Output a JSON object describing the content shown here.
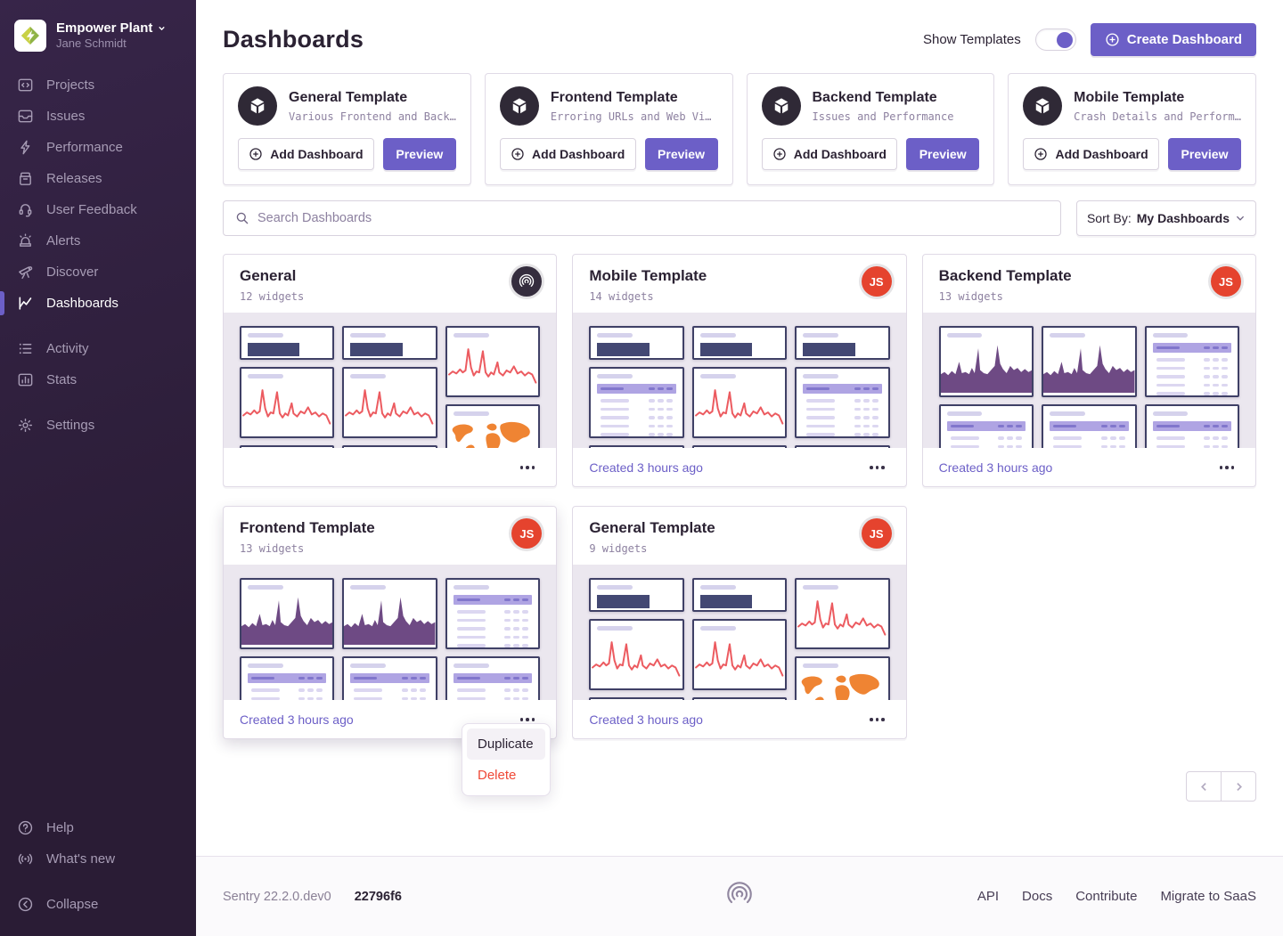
{
  "sidebar": {
    "org_name": "Empower Plant",
    "user_name": "Jane Schmidt",
    "items": [
      {
        "id": "projects",
        "label": "Projects",
        "icon": "projects"
      },
      {
        "id": "issues",
        "label": "Issues",
        "icon": "issues"
      },
      {
        "id": "performance",
        "label": "Performance",
        "icon": "performance"
      },
      {
        "id": "releases",
        "label": "Releases",
        "icon": "releases"
      },
      {
        "id": "user-feedback",
        "label": "User Feedback",
        "icon": "user-feedback"
      },
      {
        "id": "alerts",
        "label": "Alerts",
        "icon": "alerts"
      },
      {
        "id": "discover",
        "label": "Discover",
        "icon": "discover"
      },
      {
        "id": "dashboards",
        "label": "Dashboards",
        "icon": "dashboards",
        "active": true
      },
      {
        "id": "activity",
        "label": "Activity",
        "icon": "activity",
        "gap_before": true
      },
      {
        "id": "stats",
        "label": "Stats",
        "icon": "stats"
      },
      {
        "id": "settings",
        "label": "Settings",
        "icon": "settings",
        "gap_before": true
      }
    ],
    "bottom_items": [
      {
        "id": "help",
        "label": "Help",
        "icon": "help"
      },
      {
        "id": "whats-new",
        "label": "What's new",
        "icon": "whats-new"
      },
      {
        "id": "collapse",
        "label": "Collapse",
        "icon": "collapse",
        "gap_before": true
      }
    ]
  },
  "header": {
    "title": "Dashboards",
    "show_templates_label": "Show Templates",
    "show_templates_on": true,
    "create_button_label": "Create Dashboard"
  },
  "templates": {
    "add_label": "Add Dashboard",
    "preview_label": "Preview",
    "cards": [
      {
        "title": "General Template",
        "description": "Various Frontend and Back…"
      },
      {
        "title": "Frontend Template",
        "description": "Erroring URLs and Web Vi…"
      },
      {
        "title": "Backend Template",
        "description": "Issues and Performance"
      },
      {
        "title": "Mobile Template",
        "description": "Crash Details and Perform…"
      }
    ]
  },
  "search": {
    "placeholder": "Search Dashboards"
  },
  "sort": {
    "label": "Sort By:",
    "value": "My Dashboards"
  },
  "dashboards": [
    {
      "title": "General",
      "widget_count": "12 widgets",
      "avatar": "sentry",
      "avatar_text": "",
      "created": "",
      "columns": [
        [
          "bignumber",
          "line",
          "sliver"
        ],
        [
          "bignumber",
          "line",
          "sliver"
        ],
        [
          "line",
          "worldmap"
        ]
      ]
    },
    {
      "title": "Mobile Template",
      "widget_count": "14 widgets",
      "avatar": "js",
      "avatar_text": "JS",
      "created": "Created 3 hours ago",
      "columns": [
        [
          "bignumber",
          "table",
          "sliver"
        ],
        [
          "bignumber",
          "line",
          "sliver"
        ],
        [
          "bignumber",
          "table",
          "sliver"
        ]
      ]
    },
    {
      "title": "Backend Template",
      "widget_count": "13 widgets",
      "avatar": "js",
      "avatar_text": "JS",
      "created": "Created 3 hours ago",
      "columns": [
        [
          "area",
          "table"
        ],
        [
          "area",
          "table"
        ],
        [
          "table",
          "table"
        ]
      ]
    },
    {
      "title": "Frontend Template",
      "widget_count": "13 widgets",
      "avatar": "js",
      "avatar_text": "JS",
      "created": "Created 3 hours ago",
      "menu_open": true,
      "columns": [
        [
          "area",
          "table"
        ],
        [
          "area",
          "table"
        ],
        [
          "table",
          "table"
        ]
      ]
    },
    {
      "title": "General Template",
      "widget_count": "9 widgets",
      "avatar": "js",
      "avatar_text": "JS",
      "created": "Created 3 hours ago",
      "columns": [
        [
          "bignumber",
          "line",
          "sliver"
        ],
        [
          "bignumber",
          "line",
          "sliver"
        ],
        [
          "line",
          "worldmap"
        ]
      ]
    }
  ],
  "context_menu": {
    "items": [
      {
        "label": "Duplicate",
        "danger": false,
        "highlighted": true
      },
      {
        "label": "Delete",
        "danger": true,
        "highlighted": false
      }
    ]
  },
  "footer": {
    "version": "Sentry 22.2.0.dev0",
    "build": "22796f6",
    "links": [
      "API",
      "Docs",
      "Contribute",
      "Migrate to SaaS"
    ]
  },
  "colors": {
    "accent": "#6c5fc7",
    "danger": "#ef4836",
    "line_chart": "#ec5b60",
    "area_chart": "#6e4a84",
    "world_map": "#ef8433",
    "big_number_bar": "#434873",
    "js_avatar": "#e5432e",
    "sidebar_bg": "#2f2040"
  }
}
